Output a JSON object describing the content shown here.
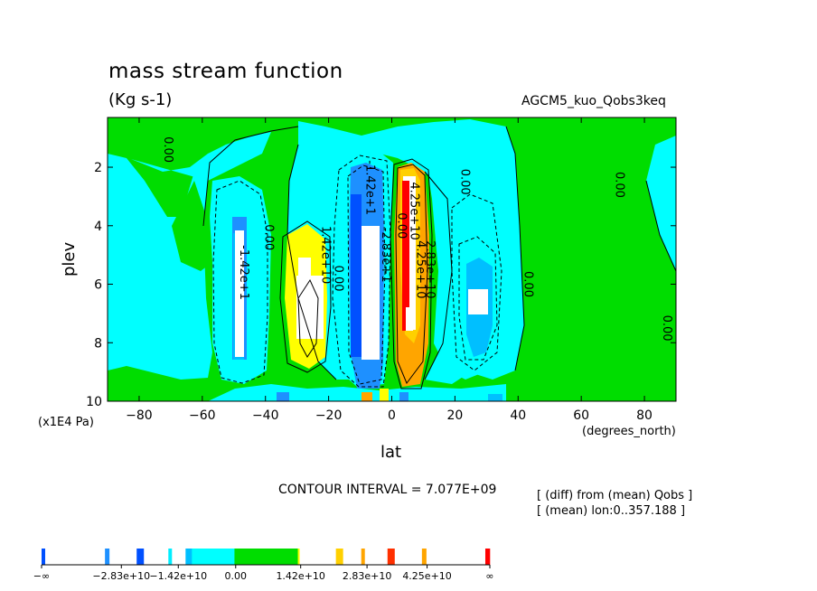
{
  "chart_data": {
    "type": "heatmap",
    "title": "mass stream function",
    "subtitle": "(Kg s-1)",
    "run_label": "AGCM5_kuo_Qobs3keq",
    "xlabel": "lat",
    "x_unit": "(degrees_north)",
    "ylabel": "plev",
    "y_unit": "(x1E4 Pa)",
    "xlim": [
      -90,
      90
    ],
    "ylim": [
      10,
      0.3
    ],
    "x_ticks": [
      -80,
      -60,
      -40,
      -20,
      0,
      20,
      40,
      60,
      80
    ],
    "x_tick_labels": [
      "−80",
      "−60",
      "−40",
      "−20",
      "0",
      "20",
      "40",
      "60",
      "80"
    ],
    "y_ticks": [
      2,
      4,
      6,
      8,
      10
    ],
    "y_tick_labels": [
      "2",
      "4",
      "6",
      "8",
      "10"
    ],
    "contour_interval_text": "CONTOUR INTERVAL = 7.077E+09",
    "notes": [
      "[ (diff) from (mean) Qobs ]",
      "[ (mean) lon:0..357.188 ]"
    ],
    "contour_labels": [
      {
        "text": "0.00",
        "lat": -72,
        "plev": 1.4
      },
      {
        "text": "0.00",
        "lat": -40,
        "plev": 4.4
      },
      {
        "text": "-1.42e+1",
        "lat": -48,
        "plev": 5.6
      },
      {
        "text": "1.42e+10",
        "lat": -22,
        "plev": 5.0
      },
      {
        "text": "0.00",
        "lat": -18,
        "plev": 5.8
      },
      {
        "text": "-1.42e+1",
        "lat": -8,
        "plev": 2.7
      },
      {
        "text": "-2.83e+1",
        "lat": -3,
        "plev": 5.0
      },
      {
        "text": "0.00",
        "lat": 2,
        "plev": 4.0
      },
      {
        "text": "4.25e+10",
        "lat": 6,
        "plev": 3.5
      },
      {
        "text": "4.25e+10",
        "lat": 8,
        "plev": 5.5
      },
      {
        "text": "2.83e+10",
        "lat": 11,
        "plev": 5.5
      },
      {
        "text": "0.00",
        "lat": 22,
        "plev": 2.5
      },
      {
        "text": "0.00",
        "lat": 42,
        "plev": 6.0
      },
      {
        "text": "0.00",
        "lat": 71,
        "plev": 2.6
      },
      {
        "text": "0.00",
        "lat": 86,
        "plev": 7.5
      }
    ],
    "colorbar": {
      "colors": [
        "#0050ff",
        "#ffffff",
        "#1e90ff",
        "#ffffff",
        "#0050ff",
        "#ffffff",
        "#00eeff",
        "#ffffff",
        "#00bfff",
        "#00ffff",
        "#00dd00",
        "#ffff00",
        "#ffffff",
        "#ffd000",
        "#ffffff",
        "#ffa500",
        "#ffffff",
        "#ff3000",
        "#ffffff",
        "#ffa500",
        "#ffffff",
        "#ff0000"
      ],
      "widths": [
        4,
        66,
        5,
        30,
        8,
        27,
        4,
        15,
        7,
        47,
        70,
        2,
        40,
        8,
        20,
        4,
        25,
        8,
        30,
        5,
        65,
        5
      ],
      "labels": [
        "−∞",
        "−2.83e+10",
        "−1.42e+10",
        "0.00",
        "1.42e+10",
        "2.83e+10",
        "4.25e+10",
        "∞"
      ],
      "label_positions": [
        0.0,
        0.178,
        0.305,
        0.433,
        0.578,
        0.726,
        0.86,
        1.0
      ]
    }
  }
}
